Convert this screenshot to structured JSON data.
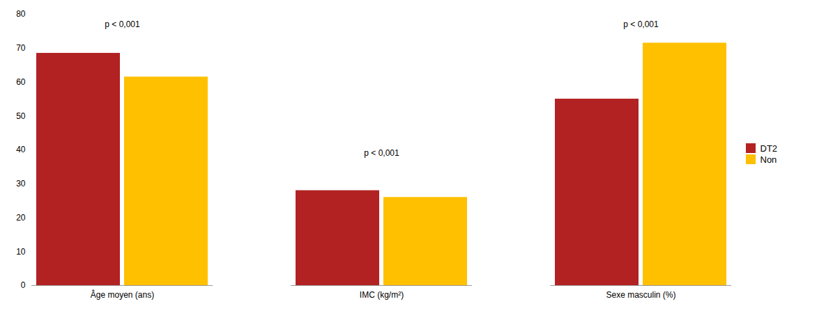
{
  "chart_data": {
    "type": "bar",
    "categories": [
      "Âge moyen (ans)",
      "IMC (kg/m²)",
      "Sexe masculin (%)"
    ],
    "series": [
      {
        "name": "DT2",
        "color": "#B22222",
        "values": [
          68.5,
          28.0,
          55.0
        ]
      },
      {
        "name": "Non",
        "color": "#FFC000",
        "values": [
          61.5,
          26.0,
          71.5
        ]
      }
    ],
    "annotations": [
      {
        "text": "p < 0,001",
        "x": "Âge moyen (ans)",
        "y": 78
      },
      {
        "text": "p < 0,001",
        "x": "IMC (kg/m²)",
        "y": 40
      },
      {
        "text": "p < 0,001",
        "x": "Sexe masculin (%)",
        "y": 78
      }
    ],
    "ylim": [
      0,
      80
    ],
    "yticks": [
      0,
      10,
      20,
      30,
      40,
      50,
      60,
      70,
      80
    ],
    "grid": false,
    "legend": "right"
  }
}
